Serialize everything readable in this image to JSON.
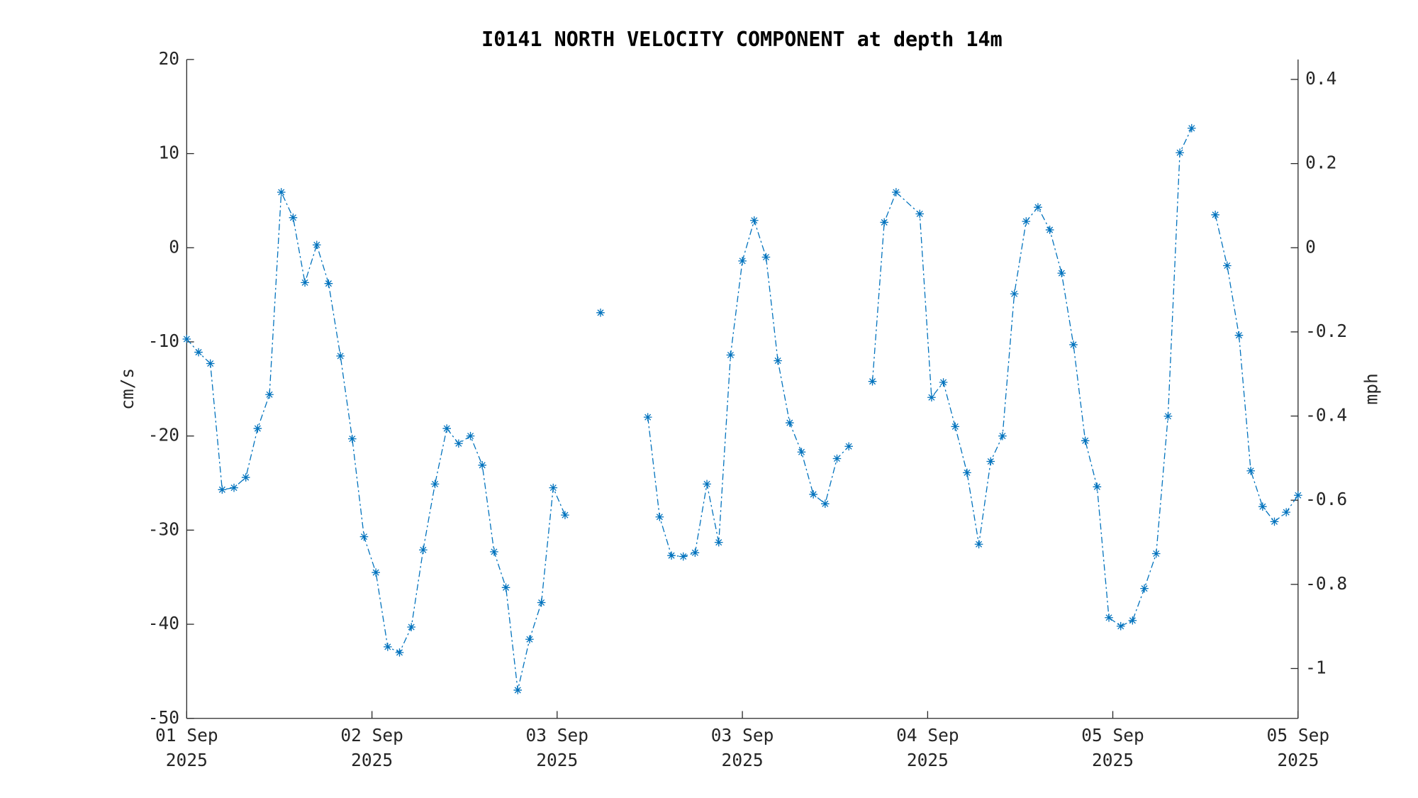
{
  "chart_data": {
    "type": "line",
    "title": "I0141 NORTH VELOCITY COMPONENT at depth 14m",
    "y_label": "cm/s",
    "y2_label": "mph",
    "x": [
      0,
      1,
      2,
      3,
      4,
      5,
      6,
      7,
      8,
      9,
      10,
      11,
      12,
      13,
      14,
      15,
      16,
      17,
      18,
      19,
      20,
      21,
      22,
      23,
      24,
      25,
      26,
      27,
      28,
      29,
      30,
      31,
      32,
      33,
      34,
      35,
      36,
      37,
      38,
      39,
      40,
      41,
      42,
      43,
      44,
      45,
      46,
      47,
      48,
      49,
      50,
      51,
      52,
      53,
      54,
      55,
      56,
      57,
      58,
      59,
      60,
      62,
      63,
      64,
      65,
      66,
      67,
      68,
      69,
      70,
      71,
      72,
      73,
      74,
      75,
      76,
      77,
      78,
      79,
      80,
      81,
      82,
      83,
      84,
      85,
      86,
      87,
      88,
      89,
      90,
      91,
      92,
      93,
      94
    ],
    "series": [
      {
        "name": "north velocity",
        "color": "#0072bd",
        "values": [
          -9.7,
          -11.1,
          -12.3,
          -25.7,
          -25.5,
          -24.4,
          -19.2,
          -15.6,
          5.9,
          3.2,
          -3.7,
          0.3,
          -3.8,
          -11.5,
          -20.3,
          -30.7,
          -34.5,
          -42.4,
          -43.0,
          -40.3,
          -32.1,
          -25.1,
          -19.2,
          -20.8,
          -20.0,
          -23.1,
          -32.3,
          -36.1,
          -47.0,
          -41.6,
          -37.7,
          -25.5,
          -28.4,
          null,
          null,
          -6.9,
          null,
          null,
          null,
          -18.0,
          -28.6,
          -32.7,
          -32.8,
          -32.4,
          -25.1,
          -31.3,
          -11.4,
          -1.4,
          2.9,
          -1.0,
          -12.0,
          -18.6,
          -21.7,
          -26.2,
          -27.2,
          -22.4,
          -21.1,
          null,
          -14.2,
          2.7,
          5.9,
          3.6,
          -15.9,
          -14.3,
          -19.0,
          -23.9,
          -31.5,
          -22.7,
          -20.0,
          -4.9,
          2.8,
          4.3,
          1.9,
          -2.7,
          -10.3,
          -20.5,
          -25.4,
          -39.3,
          -40.2,
          -39.6,
          -36.2,
          -32.5,
          -17.9,
          10.1,
          12.7,
          null,
          3.5,
          -1.9,
          -9.3,
          -23.7,
          -27.5,
          -29.1,
          -28.1,
          -26.3
        ]
      }
    ],
    "xlim": [
      0,
      94
    ],
    "xticks": [
      {
        "value": 0,
        "label": "01 Sep\n2025"
      },
      {
        "value": 15.67,
        "label": "02 Sep\n2025"
      },
      {
        "value": 31.33,
        "label": "03 Sep\n2025"
      },
      {
        "value": 47,
        "label": "03 Sep\n2025"
      },
      {
        "value": 62.67,
        "label": "04 Sep\n2025"
      },
      {
        "value": 78.33,
        "label": "05 Sep\n2025"
      },
      {
        "value": 94,
        "label": "05 Sep\n2025"
      }
    ],
    "ylim": [
      -50,
      20
    ],
    "yticks": [
      20,
      10,
      0,
      -10,
      -20,
      -30,
      -40,
      -50
    ],
    "y2lim": [
      -1.1185,
      0.4474
    ],
    "y2ticks": [
      0.4,
      0.2,
      0,
      -0.2,
      -0.4,
      -0.6,
      -0.8,
      -1
    ],
    "grid": false
  }
}
